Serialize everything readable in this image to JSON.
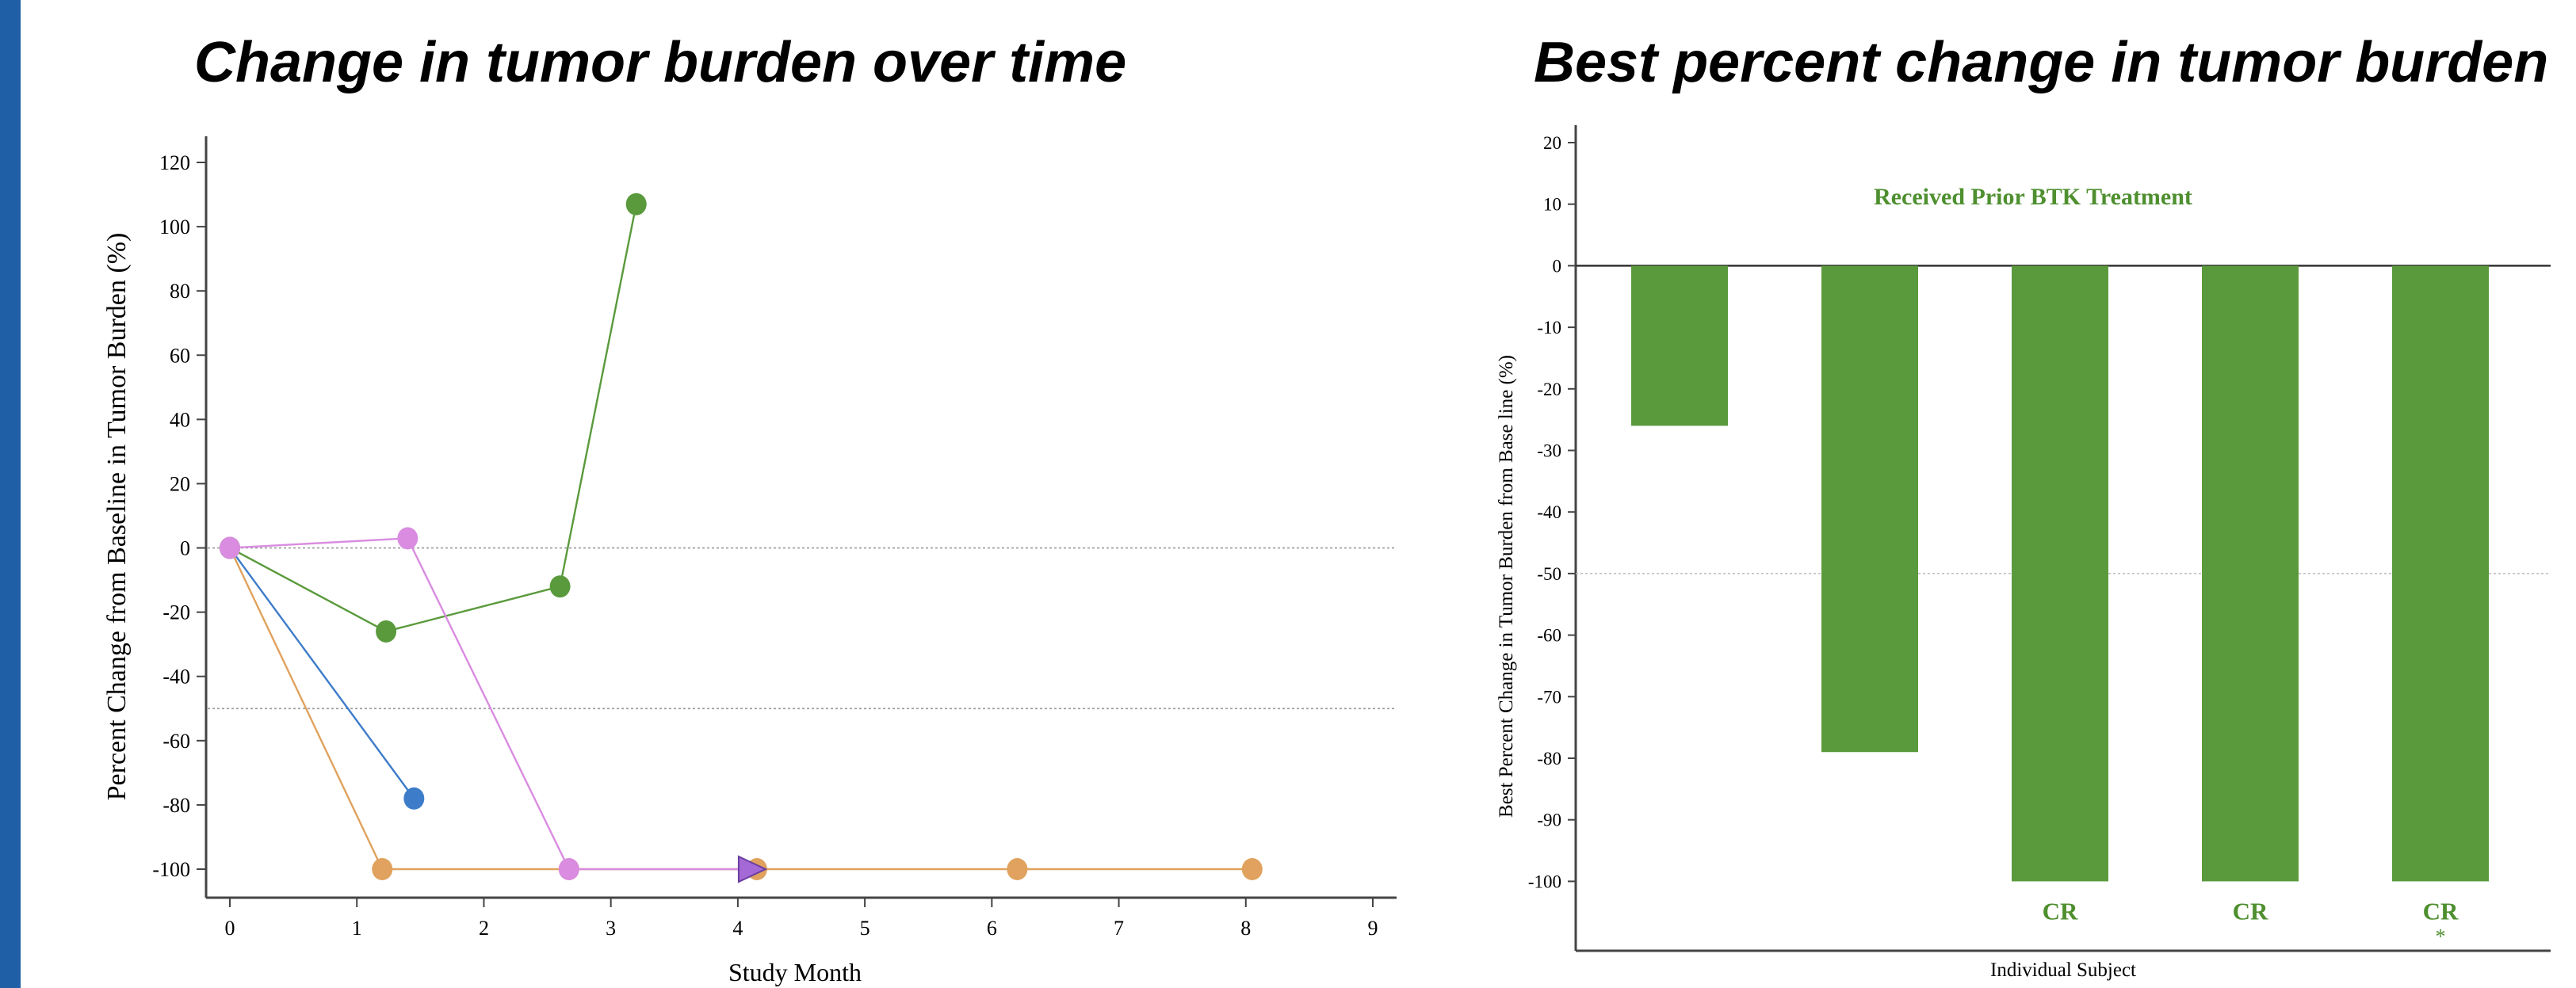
{
  "colors": {
    "accent": "#1f5fa6",
    "green": "#5a9a3c",
    "blue": "#3d7cc9",
    "orange": "#e0a25e",
    "pink": "#d98ce0",
    "purple_marker": "#a469d6",
    "bar": "#5a9a3c",
    "annotation": "#4e8f2f"
  },
  "titles": {
    "left": "Change in tumor burden over time",
    "right": "Best percent change in tumor burden"
  },
  "chart_data": [
    {
      "type": "line",
      "xlabel": "Study Month",
      "ylabel": "Percent Change from Baseline in Tumor Burden (%)",
      "xlim": [
        0,
        9
      ],
      "ylim": [
        -110,
        120
      ],
      "xticks": [
        "0",
        "1",
        "2",
        "3",
        "4",
        "5",
        "6",
        "7",
        "8",
        "9"
      ],
      "yticks": [
        "120",
        "100",
        "80",
        "60",
        "40",
        "20",
        "0",
        "-20",
        "-40",
        "-60",
        "-80",
        "-100"
      ],
      "reference_lines": [
        0,
        -50
      ],
      "grid": false,
      "series": [
        {
          "x": [
            0,
            1.23,
            2.6,
            3.2
          ],
          "y": [
            0,
            -26,
            -12,
            107
          ],
          "color_key": "green"
        },
        {
          "x": [
            0,
            1.45
          ],
          "y": [
            0,
            -78
          ],
          "color_key": "blue"
        },
        {
          "x": [
            0,
            1.2,
            2.67,
            4.15,
            6.2,
            8.05
          ],
          "y": [
            0,
            -100,
            -100,
            -100,
            -100,
            -100
          ],
          "color_key": "orange"
        },
        {
          "x": [
            0,
            1.4,
            2.67,
            4.1
          ],
          "y": [
            0,
            3,
            -100,
            -100
          ],
          "color_key": "pink",
          "last_marker": "triangle"
        }
      ]
    },
    {
      "type": "bar",
      "xlabel": "Individual Subject",
      "ylabel": "Best Percent Change in Tumor Burden from Base line (%)",
      "ylim": [
        -112,
        22
      ],
      "yticks": [
        "20",
        "10",
        "0",
        "-10",
        "-20",
        "-30",
        "-40",
        "-50",
        "-60",
        "-70",
        "-80",
        "-90",
        "-100"
      ],
      "reference_lines": [
        0,
        -50
      ],
      "annotation": "Received Prior BTK Treatment",
      "values": [
        -26,
        -79,
        -100,
        -100,
        -100
      ],
      "bar_labels": [
        "",
        "",
        "CR",
        "CR",
        "CR"
      ],
      "bar_marks": [
        "",
        "",
        "",
        "",
        "*"
      ]
    }
  ]
}
